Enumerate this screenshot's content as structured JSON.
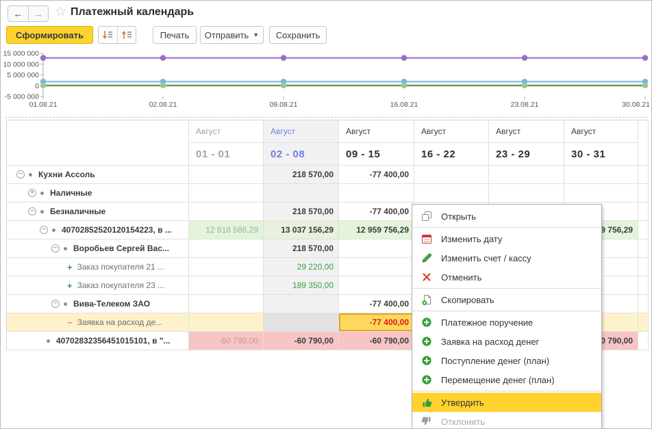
{
  "window": {
    "title": "Платежный календарь"
  },
  "titlebar_icons": {
    "back": "arrow-left",
    "forward": "arrow-right",
    "favorite": "star-outline"
  },
  "toolbar": {
    "generate_label": "Сформировать",
    "sort_icons": [
      "sort-descending",
      "sort-ascending"
    ],
    "print_label": "Печать",
    "send_label": "Отправить",
    "send_caret": "▼",
    "save_label": "Сохранить"
  },
  "chart_data": {
    "type": "line",
    "x": [
      "01.08.21",
      "02.08.21",
      "09.08.21",
      "16.08.21",
      "23.08.21",
      "30.08.21"
    ],
    "series": [
      {
        "name": "purple-series",
        "color": "#ab85cf",
        "dot_color": "#9a6cc4",
        "values": [
          12900000,
          12900000,
          12900000,
          12900000,
          12900000,
          12900000
        ]
      },
      {
        "name": "blue-series",
        "color": "#8ec7ec",
        "dot_color": "#74b7e6",
        "values": [
          1900000,
          1900000,
          1900000,
          1900000,
          1900000,
          1900000
        ]
      },
      {
        "name": "green-series",
        "color": "#6f9d52",
        "dot_color": "#a1c584",
        "values": [
          100000,
          100000,
          100000,
          100000,
          100000,
          100000
        ]
      }
    ],
    "ylim": [
      -5000000,
      15000000
    ],
    "ytick_values": [
      15000000,
      10000000,
      5000000,
      0,
      -5000000
    ],
    "ytick_labels": [
      "15 000 000",
      "10 000 000",
      "5 000 000",
      "0",
      "-5 000 000"
    ],
    "legend": "none",
    "grid": "off",
    "title": "",
    "xlabel": "",
    "ylabel": ""
  },
  "table": {
    "columns": [
      {
        "month": "Август",
        "period": "01 - 01",
        "state": "past"
      },
      {
        "month": "Август",
        "period": "02 - 08",
        "state": "current"
      },
      {
        "month": "Август",
        "period": "09 - 15",
        "state": "normal"
      },
      {
        "month": "Август",
        "period": "16 - 22",
        "state": "normal"
      },
      {
        "month": "Август",
        "period": "23 - 29",
        "state": "normal"
      },
      {
        "month": "Август",
        "period": "30 - 31",
        "state": "normal"
      }
    ],
    "rows": [
      {
        "label": "Кухни Ассоль",
        "level": 0,
        "expander": "collapse",
        "bullet": true,
        "bold": true,
        "cells": [
          null,
          {
            "t": "218 570,00",
            "s": "bold"
          },
          {
            "t": "-77 400,00",
            "s": "bold"
          },
          null,
          null,
          null
        ]
      },
      {
        "label": "Наличные",
        "level": 1,
        "expander": "expand",
        "bullet": true,
        "bold": true,
        "cells": [
          null,
          null,
          null,
          null,
          null,
          null
        ]
      },
      {
        "label": "Безналичные",
        "level": 1,
        "expander": "collapse",
        "bullet": true,
        "bold": true,
        "cells": [
          null,
          {
            "t": "218 570,00",
            "s": "bold"
          },
          {
            "t": "-77 400,00",
            "s": "bold"
          },
          null,
          null,
          null
        ]
      },
      {
        "label": "40702852520120154223, в ...",
        "level": 2,
        "expander": "collapse",
        "bullet": true,
        "bold": true,
        "cells": [
          {
            "t": "12 818 586,29",
            "s": "green-muted"
          },
          {
            "t": "13 037 156,29",
            "s": "green-bold"
          },
          {
            "t": "12 959 756,29",
            "s": "green-bold"
          },
          {
            "t": "",
            "s": "green"
          },
          {
            "t": "",
            "s": "green"
          },
          {
            "t": "12 959 756,29",
            "s": "green-bold"
          }
        ]
      },
      {
        "label": "Воробьев Сергей Вас...",
        "level": 3,
        "expander": "collapse",
        "bullet": true,
        "bold": true,
        "cells": [
          null,
          {
            "t": "218 570,00",
            "s": "bold"
          },
          null,
          null,
          null,
          null
        ]
      },
      {
        "label": "Заказ покупателя 21 ...",
        "level": 4,
        "glyph": "plus",
        "bold": false,
        "cells": [
          null,
          {
            "t": "29 220,00",
            "s": "green-text"
          },
          null,
          null,
          null,
          null
        ]
      },
      {
        "label": "Заказ покупателя 23 ...",
        "level": 4,
        "glyph": "plus",
        "bold": false,
        "cells": [
          null,
          {
            "t": "189 350,00",
            "s": "green-text"
          },
          null,
          null,
          null,
          null
        ]
      },
      {
        "label": "Вива-Телеком ЗАО",
        "level": 3,
        "expander": "collapse",
        "bullet": true,
        "bold": true,
        "cells": [
          null,
          null,
          {
            "t": "-77 400,00",
            "s": "bold"
          },
          null,
          null,
          null
        ]
      },
      {
        "label": "Заявка на расход де...",
        "level": 4,
        "glyph": "minus",
        "bold": false,
        "row_state": "highlight",
        "cells": [
          null,
          null,
          {
            "t": "-77 400,00",
            "s": "selected"
          },
          null,
          null,
          null
        ]
      },
      {
        "label": "40702832356451015101, в \"...",
        "level": 2,
        "expander": "none",
        "bullet": true,
        "bold": true,
        "cells": [
          {
            "t": "-60 790,00",
            "s": "red-muted"
          },
          {
            "t": "-60 790,00",
            "s": "red-bold"
          },
          {
            "t": "-60 790,00",
            "s": "red-bold"
          },
          {
            "t": "",
            "s": "red"
          },
          {
            "t": "",
            "s": "red"
          },
          {
            "t": "-60 790,00",
            "s": "red-bold"
          }
        ]
      }
    ]
  },
  "context_menu": {
    "items": [
      {
        "label": "Открыть",
        "icon": "open-window-icon"
      },
      {
        "type": "separator"
      },
      {
        "label": "Изменить дату",
        "icon": "calendar-icon"
      },
      {
        "label": "Изменить счет / кассу",
        "icon": "pencil-icon"
      },
      {
        "label": "Отменить",
        "icon": "cancel-x-icon"
      },
      {
        "type": "separator"
      },
      {
        "label": "Скопировать",
        "icon": "copy-plus-icon"
      },
      {
        "type": "separator"
      },
      {
        "label": "Платежное поручение",
        "icon": "plus-circle-icon"
      },
      {
        "label": "Заявка на расход денег",
        "icon": "plus-circle-icon"
      },
      {
        "label": "Поступление денег (план)",
        "icon": "plus-circle-icon"
      },
      {
        "label": "Перемещение денег (план)",
        "icon": "plus-circle-icon"
      },
      {
        "type": "separator"
      },
      {
        "label": "Утвердить",
        "icon": "thumb-up-icon",
        "state": "highlighted"
      },
      {
        "label": "Отклонить",
        "icon": "thumb-down-icon",
        "state": "disabled"
      }
    ]
  }
}
